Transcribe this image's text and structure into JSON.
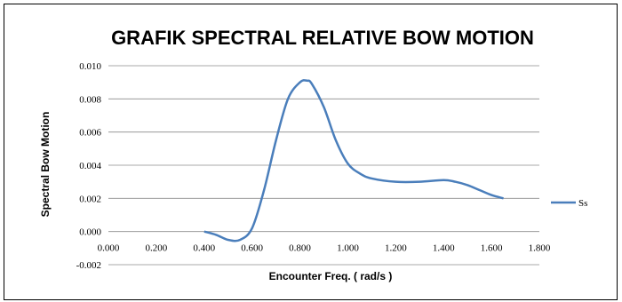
{
  "chart_data": {
    "type": "line",
    "title": "GRAFIK SPECTRAL RELATIVE BOW MOTION",
    "xlabel": "Encounter Freq. ( rad/s )",
    "ylabel": "Spectral Bow Motion",
    "xlim": [
      0.0,
      1.8
    ],
    "ylim": [
      -0.002,
      0.01
    ],
    "x_ticks": [
      "0.000",
      "0.200",
      "0.400",
      "0.600",
      "0.800",
      "1.000",
      "1.200",
      "1.400",
      "1.600",
      "1.800"
    ],
    "y_ticks": [
      "0.010",
      "0.008",
      "0.006",
      "0.004",
      "0.002",
      "0.000",
      "-0.002"
    ],
    "grid": "horizontal",
    "legend_position": "right",
    "series_color": "#4a7ebb",
    "series": [
      {
        "name": "Ss",
        "x": [
          0.4,
          0.45,
          0.5,
          0.55,
          0.6,
          0.65,
          0.7,
          0.75,
          0.8,
          0.83,
          0.85,
          0.9,
          0.95,
          1.0,
          1.05,
          1.1,
          1.2,
          1.3,
          1.4,
          1.45,
          1.5,
          1.55,
          1.6,
          1.65
        ],
        "y": [
          0.0,
          -0.0002,
          -0.0005,
          -0.0005,
          0.0002,
          0.0025,
          0.0055,
          0.008,
          0.009,
          0.0091,
          0.0089,
          0.0075,
          0.0055,
          0.0041,
          0.0035,
          0.0032,
          0.003,
          0.003,
          0.0031,
          0.003,
          0.0028,
          0.0025,
          0.0022,
          0.002
        ]
      }
    ]
  }
}
